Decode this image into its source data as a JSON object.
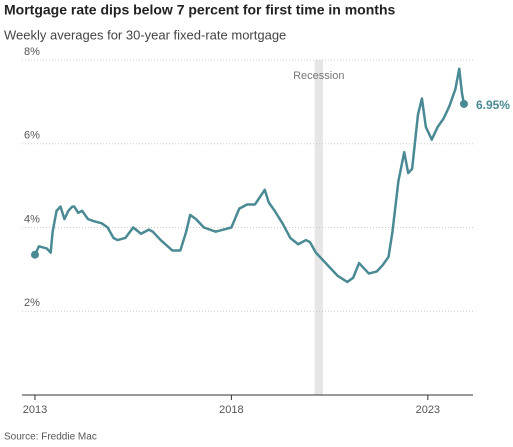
{
  "chart_data": {
    "type": "line",
    "title": "Mortgage rate dips below 7 percent for first time in months",
    "subtitle": "Weekly averages for 30-year fixed-rate mortgage",
    "source": "Source: Freddie Mac",
    "recession": {
      "label": "Recession",
      "x": [
        2020.12,
        2020.33
      ]
    },
    "x": [
      2013.0,
      2013.1,
      2013.3,
      2013.4,
      2013.45,
      2013.55,
      2013.65,
      2013.75,
      2013.85,
      2013.95,
      2014.0,
      2014.1,
      2014.2,
      2014.35,
      2014.5,
      2014.7,
      2014.85,
      2015.0,
      2015.1,
      2015.3,
      2015.5,
      2015.7,
      2015.9,
      2016.0,
      2016.2,
      2016.5,
      2016.7,
      2016.85,
      2016.95,
      2017.1,
      2017.3,
      2017.6,
      2017.8,
      2018.0,
      2018.2,
      2018.4,
      2018.6,
      2018.85,
      2018.95,
      2019.1,
      2019.3,
      2019.5,
      2019.7,
      2019.9,
      2020.0,
      2020.15,
      2020.3,
      2020.5,
      2020.7,
      2020.95,
      2021.1,
      2021.25,
      2021.5,
      2021.7,
      2021.85,
      2022.0,
      2022.1,
      2022.25,
      2022.4,
      2022.5,
      2022.6,
      2022.75,
      2022.85,
      2022.95,
      2023.1,
      2023.25,
      2023.4,
      2023.55,
      2023.7,
      2023.8,
      2023.87,
      2023.92
    ],
    "series": [
      {
        "name": "30-year fixed-rate mortgage",
        "color": "#4a8a94",
        "values": [
          3.35,
          3.55,
          3.5,
          3.4,
          3.9,
          4.4,
          4.5,
          4.2,
          4.4,
          4.5,
          4.5,
          4.35,
          4.4,
          4.2,
          4.15,
          4.1,
          4.0,
          3.75,
          3.7,
          3.75,
          4.0,
          3.85,
          3.95,
          3.9,
          3.7,
          3.45,
          3.45,
          3.9,
          4.3,
          4.2,
          4.0,
          3.9,
          3.95,
          4.0,
          4.45,
          4.55,
          4.55,
          4.9,
          4.6,
          4.4,
          4.1,
          3.75,
          3.6,
          3.7,
          3.65,
          3.4,
          3.25,
          3.05,
          2.85,
          2.7,
          2.8,
          3.15,
          2.9,
          2.95,
          3.1,
          3.3,
          3.9,
          5.1,
          5.8,
          5.3,
          5.4,
          6.7,
          7.08,
          6.4,
          6.1,
          6.4,
          6.6,
          6.9,
          7.3,
          7.79,
          7.2,
          6.95
        ],
        "value_labels": [
          null,
          null,
          null,
          null,
          null,
          null,
          null,
          null,
          null,
          null,
          null,
          null,
          null,
          null,
          null,
          null,
          null,
          null,
          null,
          null,
          null,
          null,
          null,
          null,
          null,
          null,
          null,
          null,
          null,
          null,
          null,
          null,
          null,
          null,
          null,
          null,
          null,
          null,
          null,
          null,
          null,
          null,
          null,
          null,
          null,
          null,
          null,
          null,
          null,
          null,
          null,
          null,
          null,
          null,
          null,
          null,
          null,
          null,
          null,
          null,
          null,
          null,
          null,
          null,
          null,
          null,
          null,
          null,
          null,
          null,
          null,
          "6.95%"
        ]
      }
    ],
    "xlim": [
      2012.67,
      2024.15
    ],
    "xticks": [
      2013,
      2018,
      2023
    ],
    "ylim": [
      0,
      8
    ],
    "yticks": [
      {
        "value": 2,
        "label": "2%"
      },
      {
        "value": 4,
        "label": "4%"
      },
      {
        "value": 6,
        "label": "6%"
      },
      {
        "value": 8,
        "label": "8%"
      }
    ],
    "grid": true
  }
}
